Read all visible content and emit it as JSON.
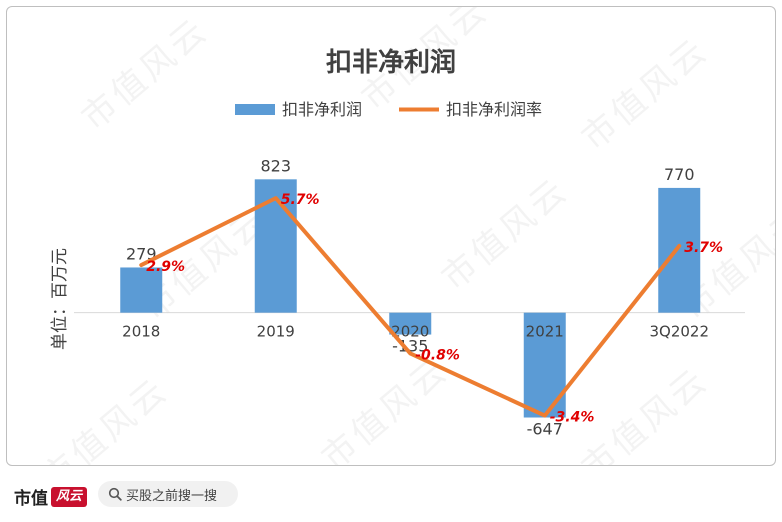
{
  "chart_data": {
    "type": "bar",
    "title": "扣非净利润",
    "ylabel": "单位：百万元",
    "categories": [
      "2018",
      "2019",
      "2020",
      "2021",
      "3Q2022"
    ],
    "series": [
      {
        "name": "扣非净利润",
        "type": "bar",
        "values": [
          279,
          823,
          -135,
          -647,
          770
        ],
        "labels": [
          "279",
          "823",
          "-135",
          "-647",
          "770"
        ]
      },
      {
        "name": "扣非净利润率",
        "type": "line",
        "values": [
          2.9,
          5.7,
          -0.8,
          -3.4,
          3.7
        ],
        "labels": [
          "2.9%",
          "5.7%",
          "-0.8%",
          "-3.4%",
          "3.7%"
        ]
      }
    ],
    "ylim": [
      -650,
      825
    ],
    "ylim_secondary": [
      -3.5,
      6.5
    ],
    "legend": "top",
    "grid": false,
    "colors": {
      "bar": "#5b9bd5",
      "line": "#ed7d31",
      "percent_label": "#e00000",
      "text": "#404040"
    }
  },
  "watermark": "市值风云",
  "footer": {
    "brand": "市值",
    "brand_mark": "风云",
    "search_placeholder": "买股之前搜一搜"
  }
}
